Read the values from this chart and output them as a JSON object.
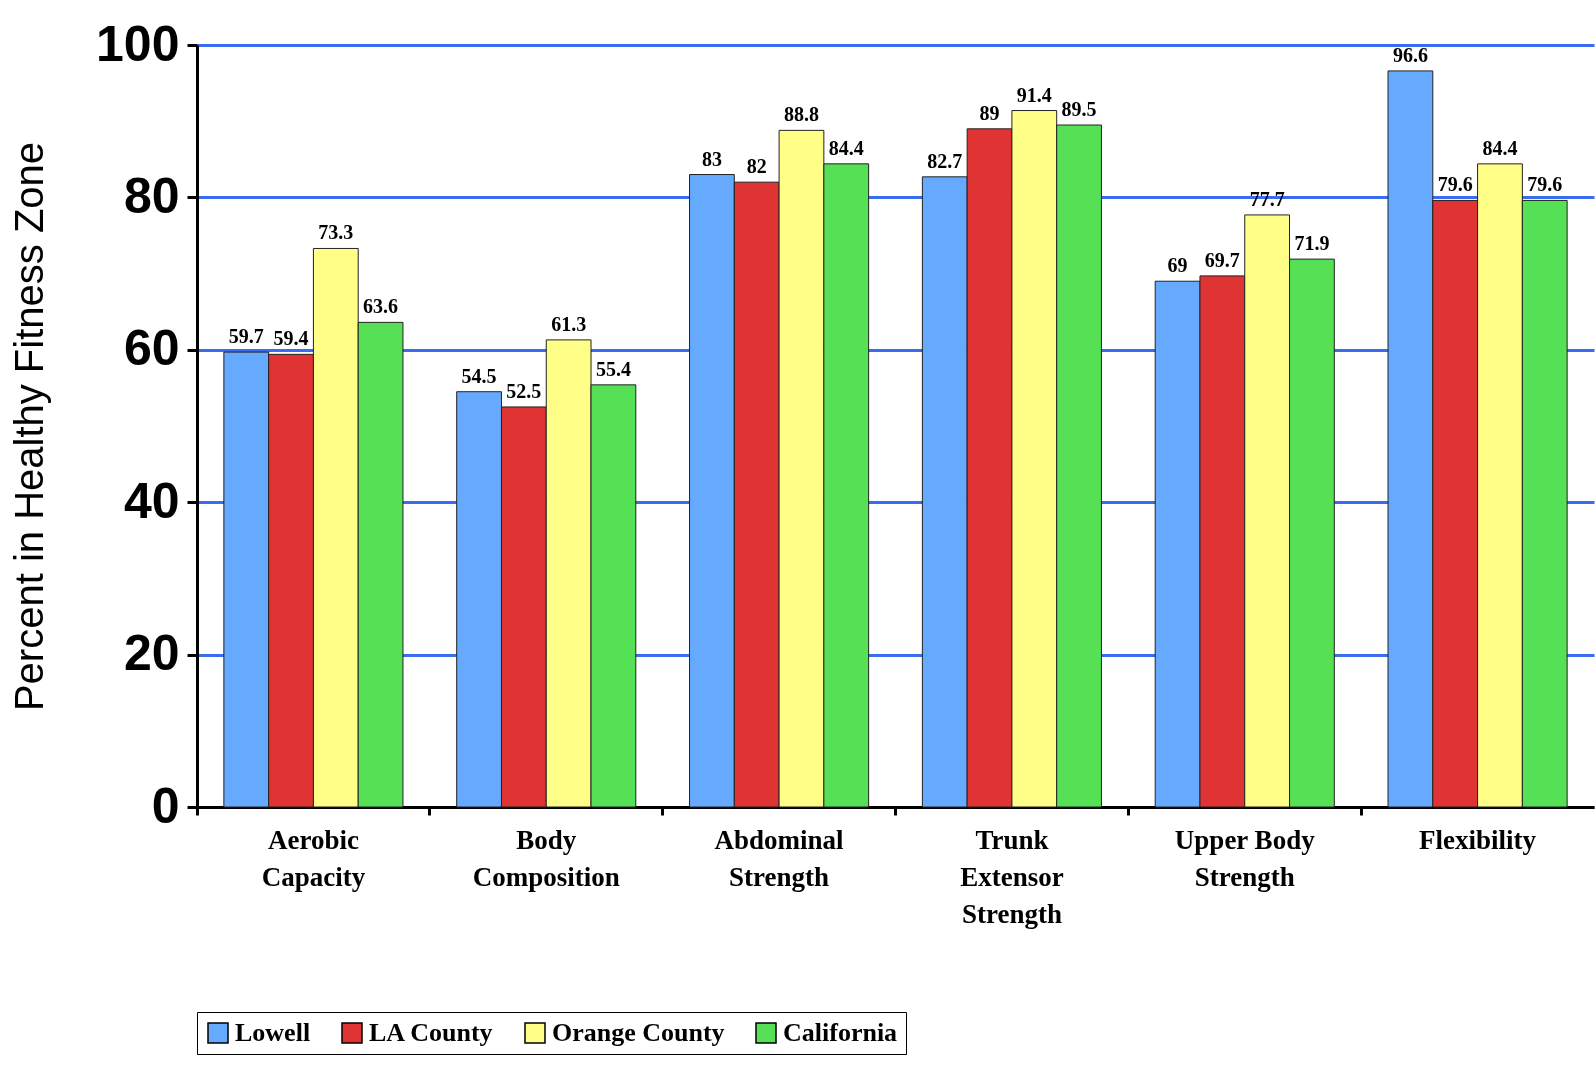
{
  "chart_data": {
    "type": "bar",
    "ylabel": "Percent in Healthy Fitness Zone",
    "categories": [
      "Aerobic Capacity",
      "Body Composition",
      "Abdominal Strength",
      "Trunk Extensor Strength",
      "Upper Body Strength",
      "Flexibility"
    ],
    "series": [
      {
        "name": "Lowell",
        "color": "#66aaff",
        "values": [
          59.7,
          54.5,
          83,
          82.7,
          69,
          96.6
        ]
      },
      {
        "name": "LA County",
        "color": "#e03333",
        "values": [
          59.4,
          52.5,
          82,
          89,
          69.7,
          79.6
        ]
      },
      {
        "name": "Orange County",
        "color": "#ffff88",
        "values": [
          73.3,
          61.3,
          88.8,
          91.4,
          77.7,
          84.4
        ]
      },
      {
        "name": "California",
        "color": "#55e055",
        "values": [
          63.6,
          55.4,
          84.4,
          89.5,
          71.9,
          79.6
        ]
      }
    ],
    "ylim": [
      0,
      100
    ],
    "yticks": [
      0,
      20,
      40,
      60,
      80,
      100
    ],
    "grid": "y",
    "legend": "bottom",
    "data_labels": true
  }
}
